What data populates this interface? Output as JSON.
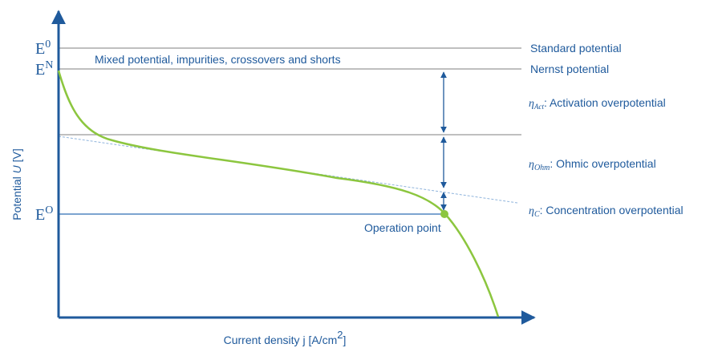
{
  "axes": {
    "y_label": {
      "before": "Potential ",
      "italic": "U",
      "after": " [V]"
    },
    "x_label": {
      "before": "Current density j [A/cm",
      "sup": "2",
      "after": "]"
    }
  },
  "levels": [
    {
      "symbol": "E",
      "sup": "0",
      "label": "Standard potential"
    },
    {
      "symbol": "E",
      "sup": "N",
      "label": "Nernst potential"
    },
    {
      "symbol": "E",
      "sup": "O"
    }
  ],
  "note": "Mixed potential, impurities, crossovers and shorts",
  "overpotentials": [
    {
      "symbol": "η",
      "sub": "Act",
      "label": ": Activation overpotential"
    },
    {
      "symbol": "η",
      "sub": "Ohm",
      "label": ": Ohmic overpotential"
    },
    {
      "symbol": "η",
      "sub": "C",
      "label": ": Concentration overpotential"
    }
  ],
  "operation_point": "Operation point"
}
